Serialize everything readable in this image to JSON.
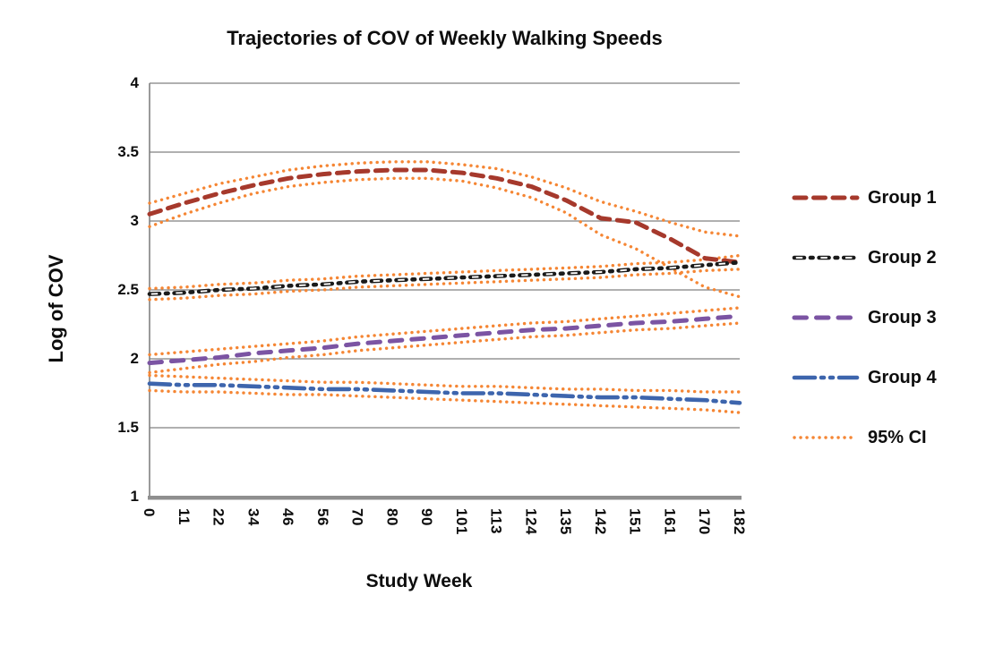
{
  "chart": {
    "title": "Trajectories of COV of Weekly Walking Speeds",
    "x_axis_title": "Study Week",
    "y_axis_title": "Log of COV"
  },
  "legend": {
    "position": "right",
    "items": [
      {
        "key": "group1",
        "label": "Group 1",
        "style": "dash"
      },
      {
        "key": "group2",
        "label": "Group 2",
        "style": "hollow-dash-dot"
      },
      {
        "key": "group3",
        "label": "Group 3",
        "style": "long-dash"
      },
      {
        "key": "group4",
        "label": "Group 4",
        "style": "dash-dot-dot"
      },
      {
        "key": "ci",
        "label": "95% CI",
        "style": "dotted"
      }
    ]
  },
  "colors": {
    "group1": "#a6392c",
    "group2": "#1a1a1a",
    "group3": "#7b54a3",
    "group4": "#3d65ad",
    "ci": "#f58634",
    "grid": "#808080",
    "axis": "#8f8f8f",
    "text": "#0d0d0d",
    "background": "#ffffff",
    "hollow_fill": "#ffffff"
  },
  "chart_data": {
    "type": "line",
    "title": "Trajectories of COV of Weekly Walking Speeds",
    "xlabel": "Study Week",
    "ylabel": "Log of COV",
    "categories": [
      0,
      11,
      22,
      34,
      46,
      56,
      70,
      80,
      90,
      101,
      113,
      124,
      135,
      142,
      151,
      161,
      170,
      182
    ],
    "x_tick_labels": [
      "0",
      "11",
      "22",
      "34",
      "46",
      "56",
      "70",
      "80",
      "90",
      "101",
      "113",
      "124",
      "135",
      "142",
      "151",
      "161",
      "170",
      "182"
    ],
    "y_ticks": [
      4,
      3.5,
      3,
      2.5,
      2,
      1.5,
      1
    ],
    "ylim": [
      1,
      4
    ],
    "grid": "horizontal",
    "legend_position": "right",
    "series": [
      {
        "name": "Group 1",
        "key": "group1",
        "style": "dash",
        "values": [
          3.05,
          3.13,
          3.2,
          3.26,
          3.31,
          3.34,
          3.36,
          3.37,
          3.37,
          3.35,
          3.31,
          3.25,
          3.15,
          3.02,
          2.99,
          2.87,
          2.73,
          2.7
        ]
      },
      {
        "name": "Group 2",
        "key": "group2",
        "style": "hollow-dash-dot",
        "values": [
          2.47,
          2.48,
          2.5,
          2.51,
          2.53,
          2.54,
          2.56,
          2.57,
          2.58,
          2.59,
          2.6,
          2.61,
          2.62,
          2.63,
          2.65,
          2.66,
          2.68,
          2.7
        ]
      },
      {
        "name": "Group 3",
        "key": "group3",
        "style": "long-dash",
        "values": [
          1.97,
          1.99,
          2.01,
          2.04,
          2.06,
          2.08,
          2.11,
          2.13,
          2.15,
          2.17,
          2.19,
          2.21,
          2.22,
          2.24,
          2.26,
          2.27,
          2.29,
          2.31
        ]
      },
      {
        "name": "Group 4",
        "key": "group4",
        "style": "dash-dot-dot",
        "values": [
          1.82,
          1.81,
          1.81,
          1.8,
          1.79,
          1.78,
          1.78,
          1.77,
          1.76,
          1.75,
          1.75,
          1.74,
          1.73,
          1.72,
          1.72,
          1.71,
          1.7,
          1.68
        ]
      }
    ],
    "ci_bands": [
      {
        "name": "95% CI Group 1",
        "key": "ci",
        "style": "dotted",
        "upper": [
          3.13,
          3.2,
          3.27,
          3.32,
          3.37,
          3.4,
          3.42,
          3.43,
          3.43,
          3.41,
          3.38,
          3.32,
          3.24,
          3.14,
          3.07,
          2.99,
          2.92,
          2.89
        ],
        "lower": [
          2.96,
          3.05,
          3.13,
          3.2,
          3.25,
          3.28,
          3.3,
          3.31,
          3.31,
          3.29,
          3.24,
          3.17,
          3.06,
          2.9,
          2.8,
          2.66,
          2.52,
          2.45
        ]
      },
      {
        "name": "95% CI Group 2",
        "key": "ci",
        "style": "dotted",
        "upper": [
          2.51,
          2.52,
          2.54,
          2.55,
          2.57,
          2.58,
          2.6,
          2.61,
          2.62,
          2.63,
          2.64,
          2.65,
          2.66,
          2.67,
          2.69,
          2.7,
          2.72,
          2.75
        ],
        "lower": [
          2.43,
          2.44,
          2.46,
          2.47,
          2.49,
          2.5,
          2.52,
          2.53,
          2.54,
          2.55,
          2.56,
          2.57,
          2.58,
          2.59,
          2.61,
          2.62,
          2.64,
          2.65
        ]
      },
      {
        "name": "95% CI Group 3",
        "key": "ci",
        "style": "dotted",
        "upper": [
          2.03,
          2.05,
          2.07,
          2.09,
          2.11,
          2.13,
          2.16,
          2.18,
          2.2,
          2.22,
          2.24,
          2.26,
          2.27,
          2.29,
          2.31,
          2.33,
          2.35,
          2.37
        ],
        "lower": [
          1.9,
          1.93,
          1.96,
          1.98,
          2.01,
          2.03,
          2.06,
          2.08,
          2.1,
          2.12,
          2.14,
          2.16,
          2.17,
          2.19,
          2.21,
          2.22,
          2.24,
          2.26
        ]
      },
      {
        "name": "95% CI Group 4",
        "key": "ci",
        "style": "dotted",
        "upper": [
          1.88,
          1.87,
          1.86,
          1.85,
          1.84,
          1.83,
          1.83,
          1.82,
          1.81,
          1.8,
          1.8,
          1.79,
          1.78,
          1.78,
          1.77,
          1.77,
          1.76,
          1.76
        ],
        "lower": [
          1.77,
          1.76,
          1.76,
          1.75,
          1.74,
          1.74,
          1.73,
          1.72,
          1.71,
          1.7,
          1.69,
          1.68,
          1.67,
          1.66,
          1.65,
          1.64,
          1.63,
          1.61
        ]
      }
    ]
  }
}
